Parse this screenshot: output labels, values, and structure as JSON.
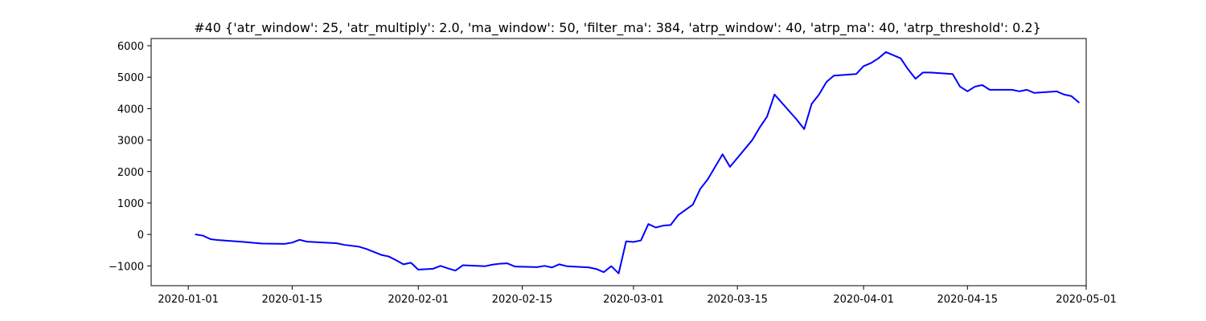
{
  "chart_data": {
    "type": "line",
    "title": "#40 {'atr_window': 25, 'atr_multiply': 2.0, 'ma_window': 50, 'filter_ma': 384, 'atrp_window': 40, 'atrp_ma': 40, 'atrp_threshold': 0.2}",
    "xlabel": "",
    "ylabel": "",
    "xlim": [
      "2019-12-27",
      "2020-05-01"
    ],
    "ylim": [
      -1630,
      6230
    ],
    "x_ticks": [
      "2020-01-01",
      "2020-01-15",
      "2020-02-01",
      "2020-02-15",
      "2020-03-01",
      "2020-03-15",
      "2020-04-01",
      "2020-04-15",
      "2020-05-01"
    ],
    "y_ticks": [
      -1000,
      0,
      1000,
      2000,
      3000,
      4000,
      5000,
      6000
    ],
    "grid": false,
    "series": [
      {
        "color": "#0000ff",
        "x": [
          "2020-01-02",
          "2020-01-03",
          "2020-01-04",
          "2020-01-05",
          "2020-01-08",
          "2020-01-09",
          "2020-01-10",
          "2020-01-11",
          "2020-01-14",
          "2020-01-15",
          "2020-01-16",
          "2020-01-17",
          "2020-01-21",
          "2020-01-22",
          "2020-01-24",
          "2020-01-25",
          "2020-01-27",
          "2020-01-28",
          "2020-01-29",
          "2020-01-30",
          "2020-01-31",
          "2020-02-01",
          "2020-02-03",
          "2020-02-04",
          "2020-02-05",
          "2020-02-06",
          "2020-02-07",
          "2020-02-10",
          "2020-02-11",
          "2020-02-12",
          "2020-02-13",
          "2020-02-14",
          "2020-02-17",
          "2020-02-18",
          "2020-02-19",
          "2020-02-20",
          "2020-02-21",
          "2020-02-24",
          "2020-02-25",
          "2020-02-26",
          "2020-02-27",
          "2020-02-28",
          "2020-02-29",
          "2020-03-01",
          "2020-03-02",
          "2020-03-03",
          "2020-03-04",
          "2020-03-05",
          "2020-03-06",
          "2020-03-07",
          "2020-03-09",
          "2020-03-10",
          "2020-03-11",
          "2020-03-12",
          "2020-03-13",
          "2020-03-14",
          "2020-03-17",
          "2020-03-18",
          "2020-03-19",
          "2020-03-20",
          "2020-03-23",
          "2020-03-24",
          "2020-03-25",
          "2020-03-26",
          "2020-03-27",
          "2020-03-28",
          "2020-03-31",
          "2020-04-01",
          "2020-04-02",
          "2020-04-03",
          "2020-04-04",
          "2020-04-06",
          "2020-04-07",
          "2020-04-08",
          "2020-04-09",
          "2020-04-10",
          "2020-04-13",
          "2020-04-14",
          "2020-04-15",
          "2020-04-16",
          "2020-04-17",
          "2020-04-18",
          "2020-04-21",
          "2020-04-22",
          "2020-04-23",
          "2020-04-24",
          "2020-04-27",
          "2020-04-28",
          "2020-04-29",
          "2020-04-30"
        ],
        "y": [
          0,
          -40,
          -150,
          -180,
          -230,
          -250,
          -270,
          -290,
          -300,
          -260,
          -170,
          -230,
          -280,
          -330,
          -390,
          -460,
          -650,
          -700,
          -820,
          -950,
          -900,
          -1120,
          -1090,
          -1000,
          -1080,
          -1150,
          -980,
          -1010,
          -960,
          -930,
          -920,
          -1020,
          -1040,
          -1000,
          -1050,
          -950,
          -1010,
          -1050,
          -1100,
          -1200,
          -1010,
          -1240,
          -220,
          -240,
          -190,
          330,
          220,
          280,
          300,
          610,
          950,
          1450,
          1750,
          2150,
          2550,
          2150,
          3000,
          3400,
          3750,
          4450,
          3650,
          3350,
          4150,
          4450,
          4850,
          5050,
          5100,
          5350,
          5450,
          5600,
          5800,
          5600,
          5250,
          4950,
          5150,
          5150,
          5100,
          4700,
          4550,
          4700,
          4750,
          4600,
          4600,
          4550,
          4600,
          4500,
          4550,
          4450,
          4400,
          4200
        ]
      }
    ]
  }
}
